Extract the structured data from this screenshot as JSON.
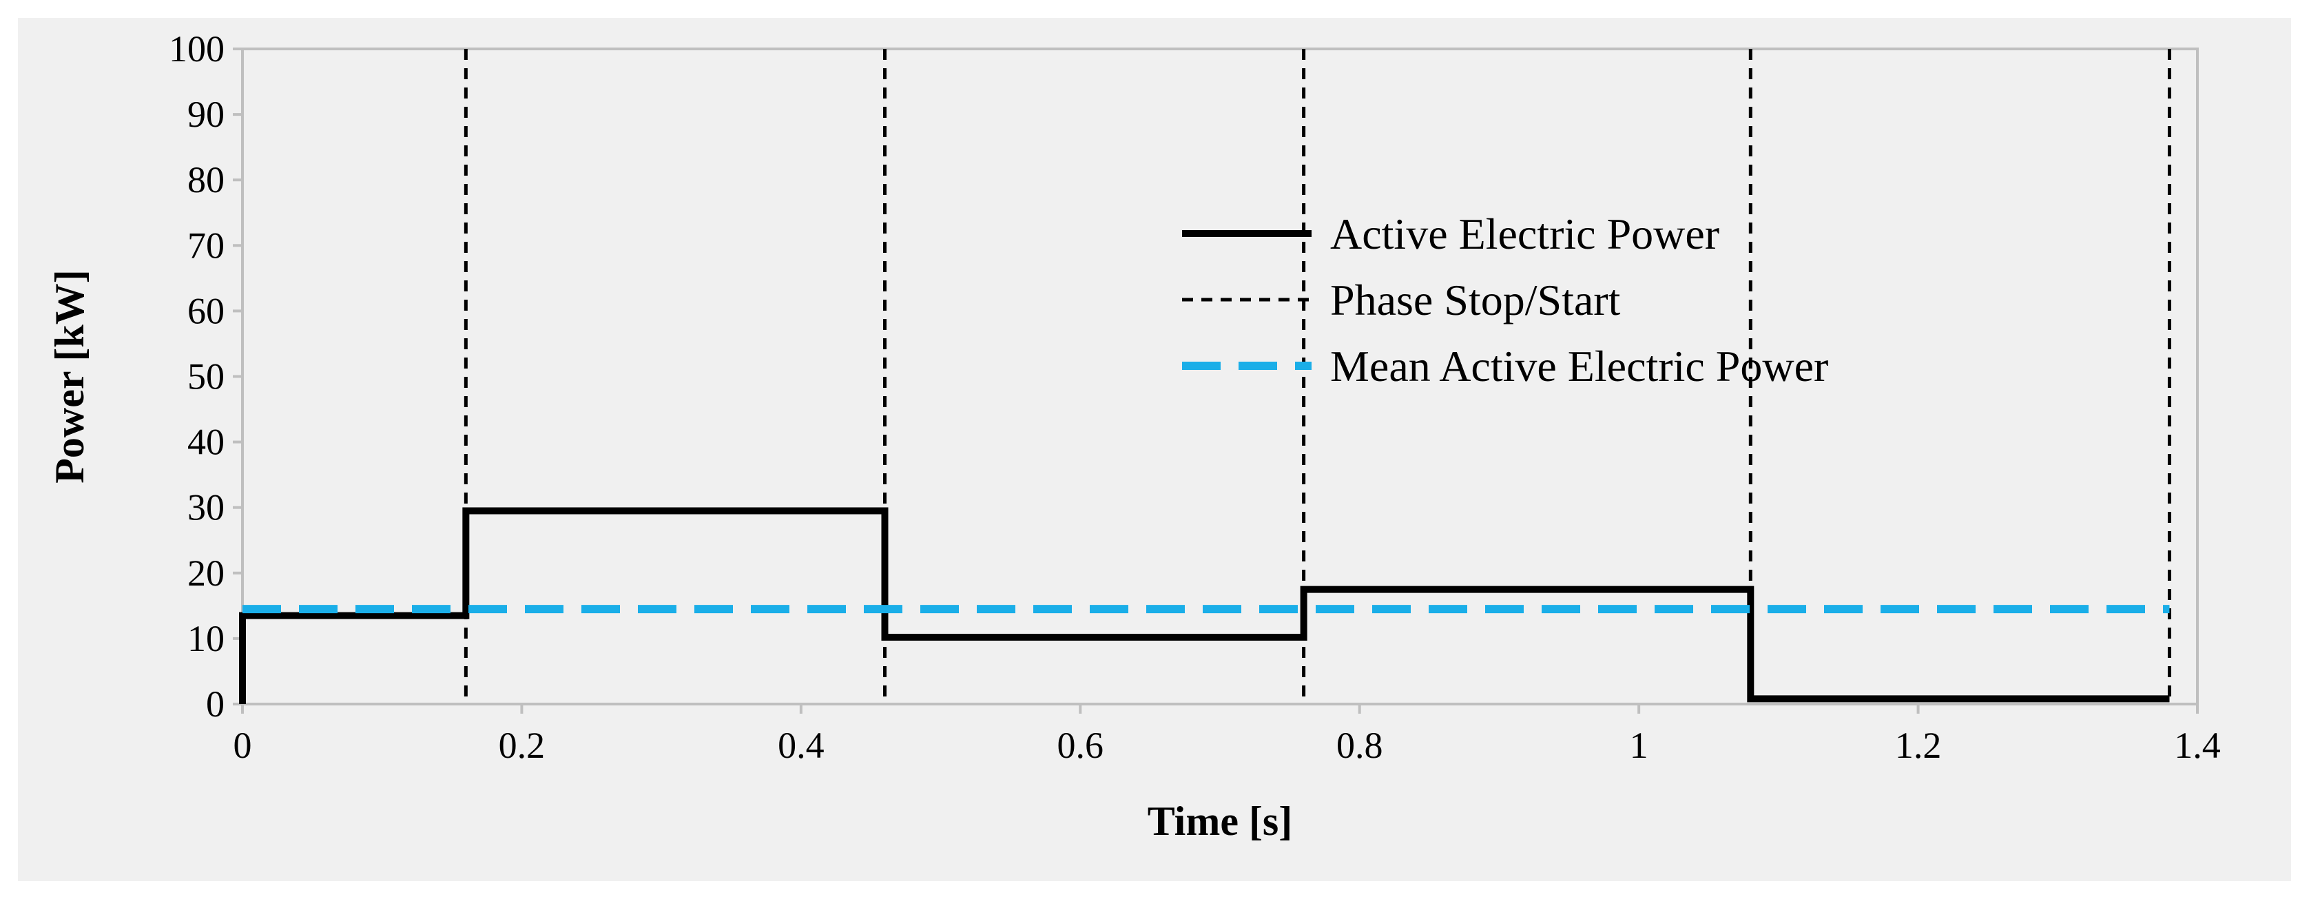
{
  "chart_data": {
    "type": "line",
    "title": "",
    "xlabel": "Time [s]",
    "ylabel": "Power [kW]",
    "xlim": [
      0,
      1.4
    ],
    "ylim": [
      0,
      100
    ],
    "x_ticks": [
      "0",
      "0.2",
      "0.4",
      "0.6",
      "0.8",
      "1",
      "1.2",
      "1.4"
    ],
    "x_tick_values": [
      0,
      0.2,
      0.4,
      0.6,
      0.8,
      1.0,
      1.2,
      1.4
    ],
    "y_ticks": [
      "0",
      "10",
      "20",
      "30",
      "40",
      "50",
      "60",
      "70",
      "80",
      "90",
      "100"
    ],
    "y_tick_values": [
      0,
      10,
      20,
      30,
      40,
      50,
      60,
      70,
      80,
      90,
      100
    ],
    "grid": false,
    "legend_position": "top-right",
    "series": [
      {
        "name": "Active Electric Power",
        "style": "solid",
        "color": "#000000",
        "x": [
          0,
          0,
          0.16,
          0.16,
          0.46,
          0.46,
          0.76,
          0.76,
          1.08,
          1.08,
          1.38
        ],
        "y": [
          0,
          13.5,
          13.5,
          29.5,
          29.5,
          10.2,
          10.2,
          17.5,
          17.5,
          0.8,
          0.8
        ]
      },
      {
        "name": "Phase Stop/Start",
        "style": "dotted",
        "color": "#000000",
        "vertical_lines_x": [
          0.16,
          0.46,
          0.76,
          1.08,
          1.38
        ]
      },
      {
        "name": "Mean Active Electric Power",
        "style": "dashed",
        "color": "#1aaee8",
        "x": [
          0,
          1.38
        ],
        "y": [
          14.5,
          14.5
        ]
      }
    ]
  }
}
